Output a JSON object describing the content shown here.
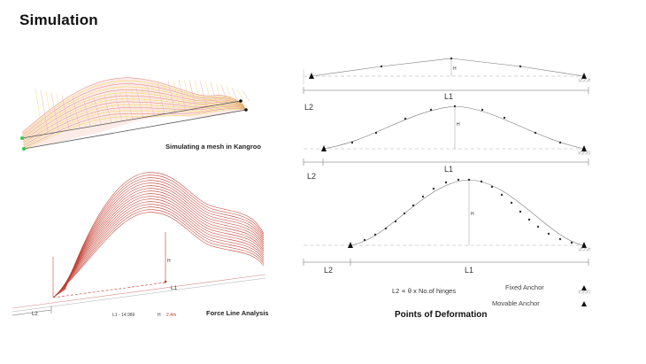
{
  "header": {
    "title": "Simulation"
  },
  "left_panel": {
    "mesh_caption": "Simulating a mesh in Kangroo",
    "force_caption": "Force Line Analysis",
    "force_labels": {
      "h": "H",
      "l1": "L1",
      "l2": "L2"
    },
    "force_readout": {
      "l1_text": "L1 - 14.989",
      "h_text": "H",
      "h_value": "2.4m"
    }
  },
  "right_panel": {
    "diagram1": {
      "h": "H",
      "l1": "L1",
      "l2": "L2"
    },
    "diagram2": {
      "h": "H",
      "l1": "L1",
      "l2": "L2"
    },
    "diagram3": {
      "h": "H",
      "l1": "L1",
      "l2": "L2"
    },
    "legend": {
      "formula": "L2 ∝  θ x No.of hinges",
      "fixed_anchor": "Fixed Anchor",
      "movable_anchor": "Movable Anchor"
    },
    "title": "Points of Deformation"
  },
  "colors": {
    "mesh_red": "#d9534f",
    "mesh_yellow": "#e8d64a",
    "force_red": "#c0392b",
    "node_green": "#2ecc40"
  }
}
